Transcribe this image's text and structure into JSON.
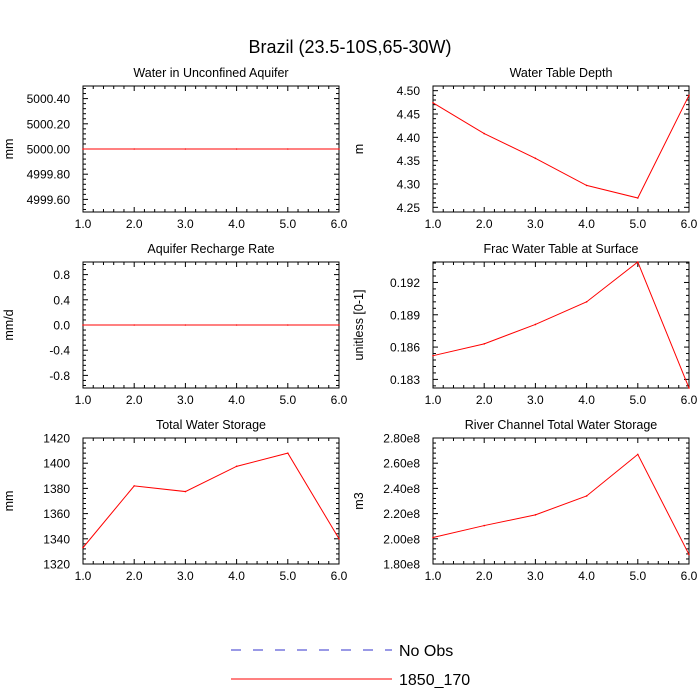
{
  "figure_title": "Brazil (23.5-10S,65-30W)",
  "colors": {
    "axis": "#000000",
    "model": "#ff0000",
    "obs": "#3333cc",
    "background": "#ffffff"
  },
  "legend": {
    "entries": [
      {
        "label": "No Obs",
        "style": "dashed",
        "color": "#3333cc"
      },
      {
        "label": "1850_170",
        "style": "solid",
        "color": "#ff0000"
      }
    ]
  },
  "chart_data": [
    {
      "type": "line",
      "title": "Water in Unconfined Aquifer",
      "xlabel": "",
      "ylabel": "mm",
      "x": [
        1,
        2,
        3,
        4,
        5,
        6
      ],
      "xlim": [
        1,
        6
      ],
      "xticks": [
        "1.0",
        "2.0",
        "3.0",
        "4.0",
        "5.0",
        "6.0"
      ],
      "ylim": [
        4999.5,
        5000.5
      ],
      "yticks": [
        4999.6,
        4999.8,
        5000.0,
        5000.2,
        5000.4
      ],
      "yticklabels": [
        "4999.60",
        "4999.80",
        "5000.00",
        "5000.20",
        "5000.40"
      ],
      "series": [
        {
          "name": "1850_170",
          "values": [
            5000,
            5000,
            5000,
            5000,
            5000,
            5000
          ]
        }
      ]
    },
    {
      "type": "line",
      "title": "Water Table Depth",
      "xlabel": "",
      "ylabel": "m",
      "x": [
        1,
        2,
        3,
        4,
        5,
        6
      ],
      "xlim": [
        1,
        6
      ],
      "xticks": [
        "1.0",
        "2.0",
        "3.0",
        "4.0",
        "5.0",
        "6.0"
      ],
      "ylim": [
        4.24,
        4.51
      ],
      "yticks": [
        4.25,
        4.3,
        4.35,
        4.4,
        4.45,
        4.5
      ],
      "yticklabels": [
        "4.25",
        "4.30",
        "4.35",
        "4.40",
        "4.45",
        "4.50"
      ],
      "series": [
        {
          "name": "1850_170",
          "values": [
            4.474,
            4.408,
            4.355,
            4.297,
            4.27,
            4.49
          ]
        }
      ]
    },
    {
      "type": "line",
      "title": "Aquifer Recharge Rate",
      "xlabel": "",
      "ylabel": "mm/d",
      "x": [
        1,
        2,
        3,
        4,
        5,
        6
      ],
      "xlim": [
        1,
        6
      ],
      "xticks": [
        "1.0",
        "2.0",
        "3.0",
        "4.0",
        "5.0",
        "6.0"
      ],
      "ylim": [
        -1.0,
        1.0
      ],
      "yticks": [
        -0.8,
        -0.4,
        0.0,
        0.4,
        0.8
      ],
      "yticklabels": [
        "-0.8",
        "-0.4",
        "0.0",
        "0.4",
        "0.8"
      ],
      "series": [
        {
          "name": "1850_170",
          "values": [
            0,
            0,
            0,
            0,
            0,
            0
          ]
        }
      ]
    },
    {
      "type": "line",
      "title": "Frac Water Table at Surface",
      "xlabel": "",
      "ylabel": "unitless [0-1]",
      "x": [
        1,
        2,
        3,
        4,
        5,
        6
      ],
      "xlim": [
        1,
        6
      ],
      "xticks": [
        "1.0",
        "2.0",
        "3.0",
        "4.0",
        "5.0",
        "6.0"
      ],
      "ylim": [
        0.1822,
        0.1939
      ],
      "yticks": [
        0.183,
        0.186,
        0.189,
        0.192
      ],
      "yticklabels": [
        "0.183",
        "0.186",
        "0.189",
        "0.192"
      ],
      "series": [
        {
          "name": "1850_170",
          "values": [
            0.1852,
            0.1863,
            0.1881,
            0.1902,
            0.1939,
            0.1822
          ]
        }
      ]
    },
    {
      "type": "line",
      "title": "Total Water Storage",
      "xlabel": "",
      "ylabel": "mm",
      "x": [
        1,
        2,
        3,
        4,
        5,
        6
      ],
      "xlim": [
        1,
        6
      ],
      "xticks": [
        "1.0",
        "2.0",
        "3.0",
        "4.0",
        "5.0",
        "6.0"
      ],
      "ylim": [
        1320,
        1420
      ],
      "yticks": [
        1320,
        1340,
        1360,
        1380,
        1400,
        1420
      ],
      "yticklabels": [
        "1320",
        "1340",
        "1360",
        "1380",
        "1400",
        "1420"
      ],
      "series": [
        {
          "name": "1850_170",
          "values": [
            1333,
            1382,
            1377.5,
            1397.5,
            1408,
            1340
          ]
        }
      ]
    },
    {
      "type": "line",
      "title": "River Channel Total Water Storage",
      "xlabel": "",
      "ylabel": "m3",
      "x": [
        1,
        2,
        3,
        4,
        5,
        6
      ],
      "xlim": [
        1,
        6
      ],
      "xticks": [
        "1.0",
        "2.0",
        "3.0",
        "4.0",
        "5.0",
        "6.0"
      ],
      "ylim": [
        180000000,
        280000000
      ],
      "yticks": [
        180000000,
        200000000,
        220000000,
        240000000,
        260000000,
        280000000
      ],
      "yticklabels": [
        "1.80e8",
        "2.00e8",
        "2.20e8",
        "2.40e8",
        "2.60e8",
        "2.80e8"
      ],
      "series": [
        {
          "name": "1850_170",
          "values": [
            201000000,
            210500000,
            219000000,
            234000000,
            267000000,
            187500000
          ]
        }
      ]
    }
  ]
}
